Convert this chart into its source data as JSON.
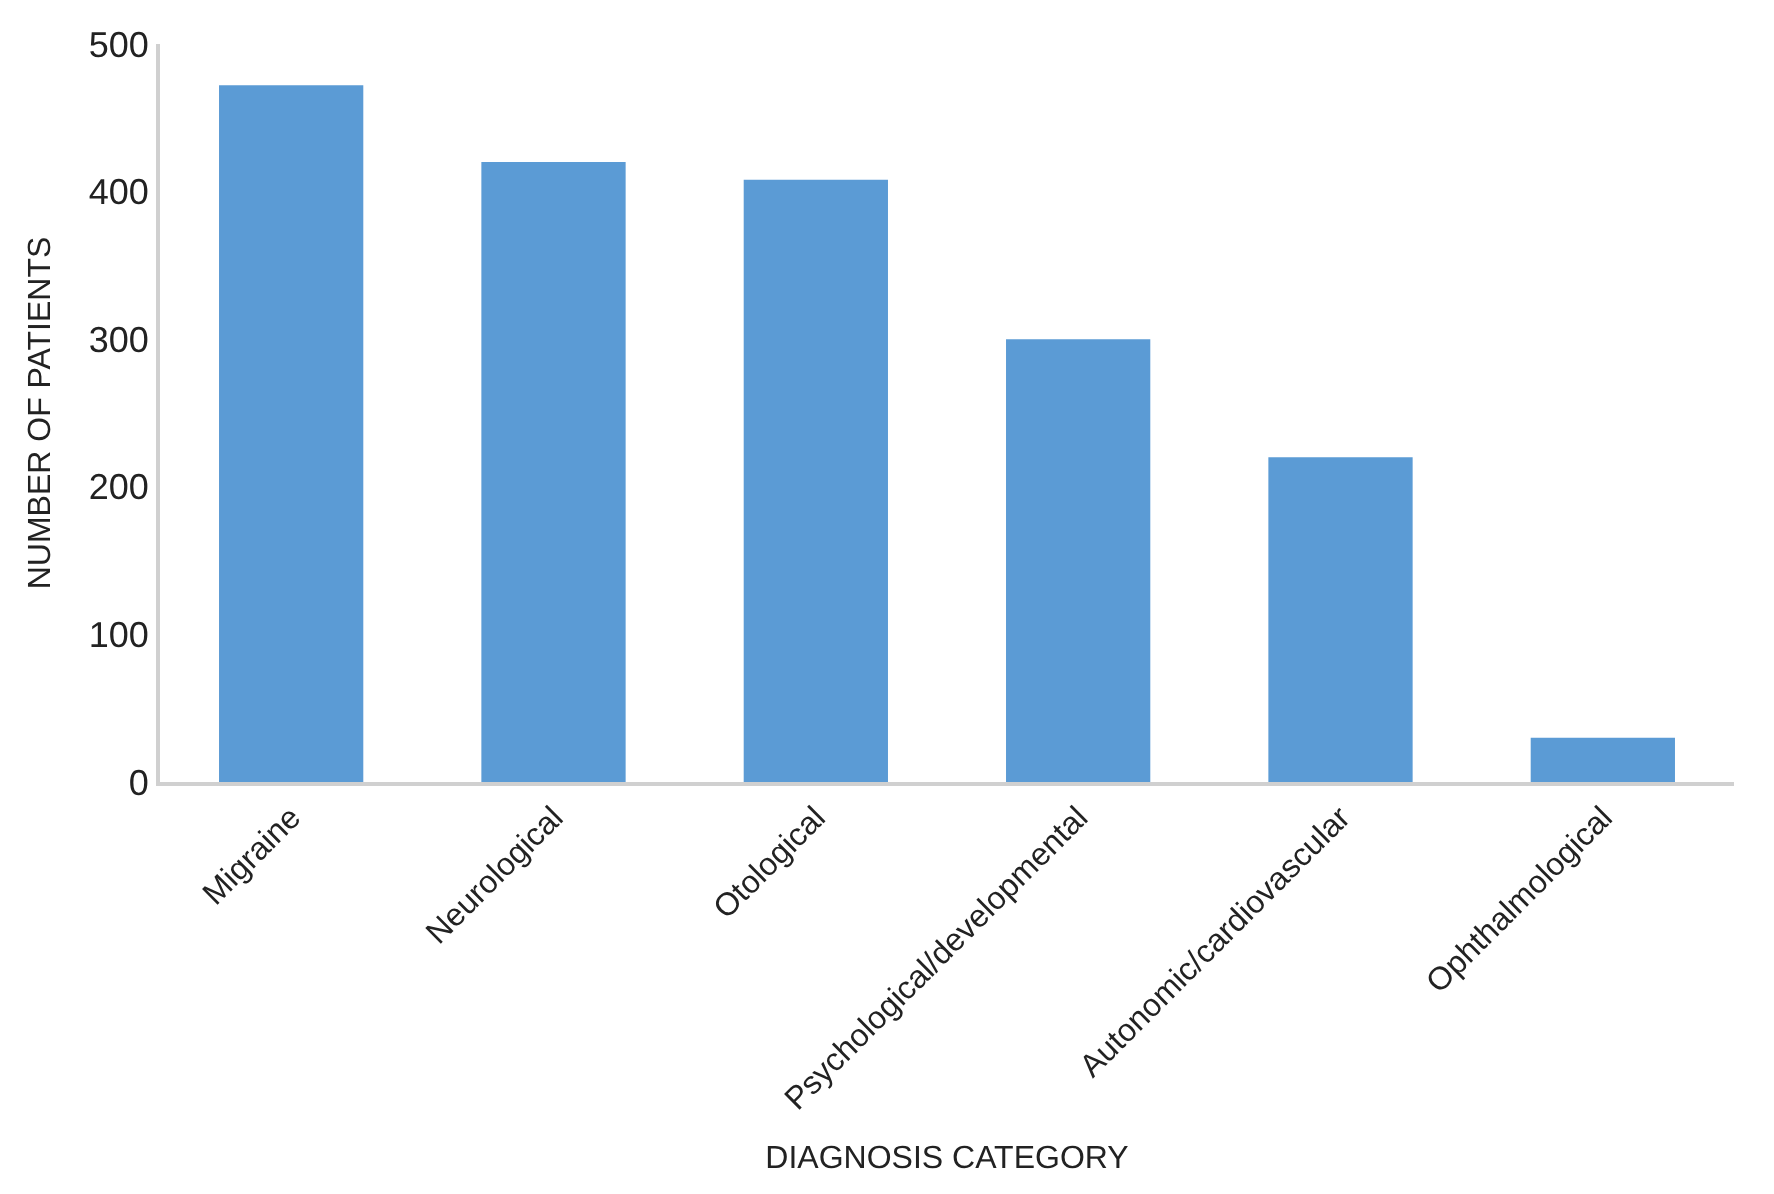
{
  "chart_data": {
    "type": "bar",
    "xlabel": "DIAGNOSIS CATEGORY",
    "ylabel": "NUMBER OF PATIENTS",
    "categories": [
      "Migraine",
      "Neurological",
      "Otological",
      "Psychological/developmental",
      "Autonomic/cardiovascular",
      "Ophthalmological"
    ],
    "values": [
      472,
      420,
      408,
      300,
      220,
      30
    ],
    "color": "#5b9bd5",
    "ylim": [
      0,
      500
    ],
    "yticks": [
      0,
      100,
      200,
      300,
      400,
      500
    ]
  }
}
